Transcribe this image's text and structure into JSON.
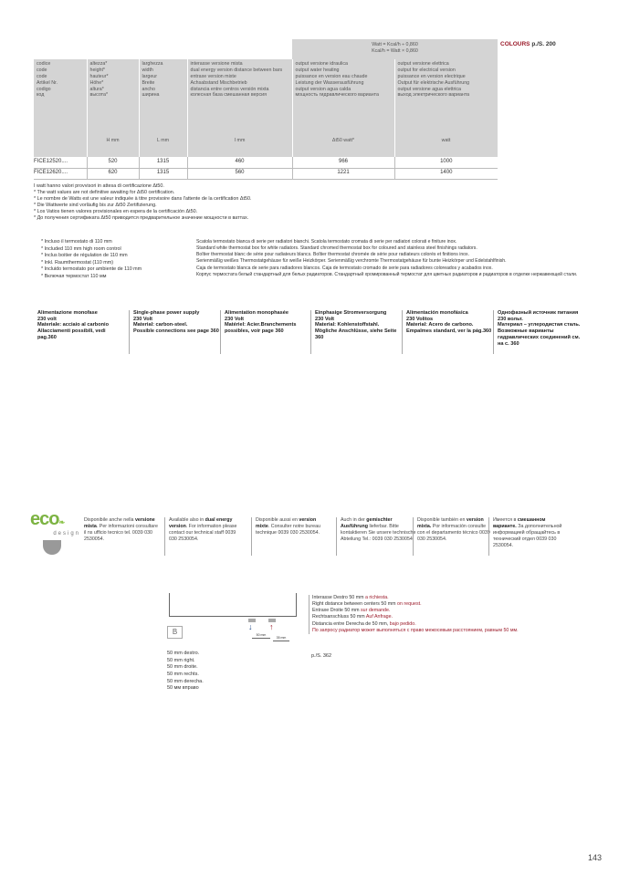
{
  "colours_ref": {
    "label": "COLOURS",
    "page": "p./S. 200"
  },
  "conversion": [
    "Watt = Kcal/h ÷ 0,860",
    "Kcal/h = Watt × 0,860"
  ],
  "table": {
    "headers": [
      {
        "lines": [
          "codice",
          "code",
          "code",
          "Artikel Nr.",
          "codigo",
          "код"
        ],
        "unit": ""
      },
      {
        "lines": [
          "altezza*",
          "height*",
          "hauteur*",
          "Höhe*",
          "altura*",
          "высота*"
        ],
        "unit": "H mm"
      },
      {
        "lines": [
          "larghezza",
          "width",
          "largeur",
          "Breite",
          "ancho",
          "ширина"
        ],
        "unit": "L mm"
      },
      {
        "lines": [
          "interasse versione mista",
          "dual energy version distance between bars",
          "entraxe  version mixte",
          "Achsabstand Mischbetrieb",
          "distancia entre centros versión mixta",
          "колесная база смешанная версия"
        ],
        "unit": "I mm"
      },
      {
        "lines": [
          "output versione idraulica",
          "output water heating",
          "puissance en version eau chaude",
          "Leistung der Wasserausführung",
          "output version agua calda",
          "мощность гидравлического варианта"
        ],
        "unit": "Δt50 watt*"
      },
      {
        "lines": [
          "output versione elettrica",
          "output for electrical version",
          "puissance en version electrique",
          "Output für elektrische Ausführung",
          "output versione agua elettrica",
          "выход электрического варианта"
        ],
        "unit": "watt"
      }
    ],
    "rows": [
      [
        "FICE12520....",
        "520",
        "1315",
        "460",
        "966",
        "1000"
      ],
      [
        "FICE12620....",
        "620",
        "1315",
        "560",
        "1221",
        "1400"
      ]
    ]
  },
  "footnotes": [
    "I watt hanno valori provvisori in attesa di certificazione Δt50.",
    "* The watt values are not definitive awaiting for Δt50 certification.",
    "* Le nombre de Watts est une valeur indiquée à titre provisoire dans l'attente de la certification Δt50.",
    "* Die Wattwerte sind vorläufig bis zur Δt50 Zertifizierung.",
    "* Los Vatios tienen valores provisionales en espera de la certificación Δt50.",
    "* До получения сертификата Δt50 приводится предварительное значение мощности в ваттах."
  ],
  "thermostat_included": [
    "* Incluso il termostato di 110 mm",
    "* Included 110 mm high room control",
    "* Inclus boitier de régulation de 110 mm",
    "* Inkl. Raumthermostat (110 mm)",
    "* Incluido termostato por ambiente de 110 mm",
    "* Включая термостат 110 мм"
  ],
  "thermostat_box": [
    "Scatola termostato bianca di serie per radiatori bianchi. Scatola termostato cromata di serie per radiatori colorati e finiture inox.",
    "Standard white thermostat box for white radiators. Standard chromed thermostat box for coloured and stainless steel finishings radiators.",
    "Boîtier thermostat blanc de série pour radiateurs blancs. Boîtier thermostat chromée de série pour radiateurs colorés et finitions inox.",
    "Serienmäßig weißes Thermostatgehäuse für weiße Heizkörper. Serienmäßig verchromte Thermostatgehäuse für bunte Heizkörper und Edelstahlfinish.",
    "Caja de termostato blanca de serie para radiadores blancos. Caja de termostato cromado de serie para radiadores coloreados y acabados inox.",
    "Корпус термостата белый стандартный для белых радиаторов. Стандартный хромированный термостат для цветных радиаторов и радиаторов в отделке нержавеющей стали."
  ],
  "power_supply": [
    [
      "Alimentazione monofase",
      "230 volt",
      "Materiale: acciaio al carbonio",
      "Allacciamenti possibili, vedi pag.360"
    ],
    [
      "Single-phase power supply",
      "230 Volt",
      "Material: carbon-steel.",
      "Possible connections see page 360"
    ],
    [
      "Alimentation monophasée",
      "230 Volt",
      "Matériel: Acier.Branchements possibles, voir page 360"
    ],
    [
      "Einphasige Stromversorgung",
      "230 Volt",
      "Material: Kohlenstoffstahl.",
      "Mögliche Anschlüsse, siehe Seite 360"
    ],
    [
      "Alimentación monofásica",
      "230 Volitos",
      "Material: Acero de carbono.",
      "Empalmes standard, ver la pág.360"
    ],
    [
      "Однофазный источник питания",
      "230 вольт.",
      "Материал – углеродистая сталь.",
      "Возможные варианты гидравлических соединений см. на с. 360"
    ]
  ],
  "eco_logo": {
    "text1": "eco",
    "text2": "design"
  },
  "dual_energy": [
    {
      "pre": "Disponibile anche nella ",
      "bold": "versione mista",
      "post": ". Per informazioni consultare il ns ufficio tecnico tel. 0039 030 2530054."
    },
    {
      "pre": "Available also in ",
      "bold": "dual energy version",
      "post": ". For information please contact our technical staff 0039 030 2530054."
    },
    {
      "pre": "Disponible aussi en ",
      "bold": "version mixte",
      "post": ". Consulter notre bureau technique 0039 030 2530054."
    },
    {
      "pre": "Auch in der ",
      "bold": "gemischter Ausführung",
      "post": " lieferbar. Bitte kontaktieren Sie unsere technische Abteilung Tel.: 0039 030 2530054."
    },
    {
      "pre": "Disponible también en ",
      "bold": "version mixta.",
      "post": " Por información consulte con el departamento técnico 0039 030 2530054."
    },
    {
      "pre": "Имеется в ",
      "bold": "смешанном варианте.",
      "post": " За дополнительной информацией обращайтесь в технический отдел 0039 030 2530054."
    }
  ],
  "diagram": {
    "label": "B",
    "dim1": "50 mm",
    "dim2": "35 mm"
  },
  "right_distance": [
    {
      "text": "Interasse Destro 50 mm ",
      "red": "a richiesta."
    },
    {
      "text": "Right distance between centers 50 mm ",
      "red": "on request."
    },
    {
      "text": "Entraxe Droite 50 mm ",
      "red": "sur demande."
    },
    {
      "text": "Rechtsanschluss 50 mm ",
      "red": "Auf Anfrage."
    },
    {
      "text": "Distancia entre Derecha de 50 mm, ",
      "red": "bajo pedido."
    },
    {
      "text": "",
      "red": "По запросу радиатор может выполняться с право межосевым расстоянием, равным 50 мм."
    }
  ],
  "page_ref": "p./S. 362",
  "right_50": [
    "50 mm destro.",
    "50 mm right.",
    "50 mm droite.",
    "50 mm rechts.",
    "50 mm derecha.",
    "50 мм вправо"
  ],
  "page_number": "143",
  "colors": {
    "accent": "#9b1b2a",
    "header_grey": "#d4d4d4",
    "eco_green": "#7cb342"
  }
}
